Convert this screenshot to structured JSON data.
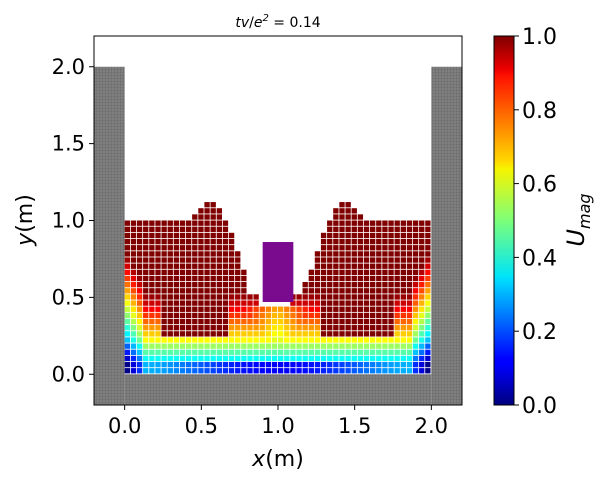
{
  "chart_data": {
    "type": "heatmap",
    "title": "tv/e² = 0.14",
    "title_parts": {
      "t": "tv",
      "slash": "/",
      "e": "e",
      "sup": "2",
      "eq": " = 0.14"
    },
    "xlabel": {
      "var": "x",
      "unit": "(m)"
    },
    "ylabel": {
      "var": "y",
      "unit": "(m)"
    },
    "xlim": [
      -0.2,
      2.2
    ],
    "ylim": [
      -0.2,
      2.2
    ],
    "xticks": [
      0.0,
      0.5,
      1.0,
      1.5,
      2.0
    ],
    "xtick_labels": [
      "0.0",
      "0.5",
      "1.0",
      "1.5",
      "2.0"
    ],
    "yticks": [
      0.0,
      0.5,
      1.0,
      1.5,
      2.0
    ],
    "ytick_labels": [
      "0.0",
      "0.5",
      "1.0",
      "1.5",
      "2.0"
    ],
    "colorbar": {
      "label_var": "U",
      "label_sub": "mag",
      "cmap": "jet",
      "range": [
        0.0,
        1.0
      ],
      "ticks": [
        0.0,
        0.2,
        0.4,
        0.6,
        0.8,
        1.0
      ],
      "tick_labels": [
        "0.0",
        "0.2",
        "0.4",
        "0.6",
        "0.8",
        "1.0"
      ]
    },
    "walls": [
      {
        "name": "left-wall",
        "x": [
          -0.2,
          0.0
        ],
        "y": [
          -0.2,
          2.0
        ]
      },
      {
        "name": "right-wall",
        "x": [
          2.0,
          2.2
        ],
        "y": [
          -0.2,
          2.0
        ]
      },
      {
        "name": "floor",
        "x": [
          0.0,
          2.0
        ],
        "y": [
          -0.2,
          0.0
        ]
      }
    ],
    "obstacle": {
      "x": [
        0.9,
        1.1
      ],
      "y": [
        0.47,
        0.86
      ],
      "color": "#7a0a8e"
    },
    "fluid_region": {
      "x": [
        0.0,
        2.0
      ],
      "y": [
        0.0,
        1.13
      ]
    },
    "grid": false
  }
}
